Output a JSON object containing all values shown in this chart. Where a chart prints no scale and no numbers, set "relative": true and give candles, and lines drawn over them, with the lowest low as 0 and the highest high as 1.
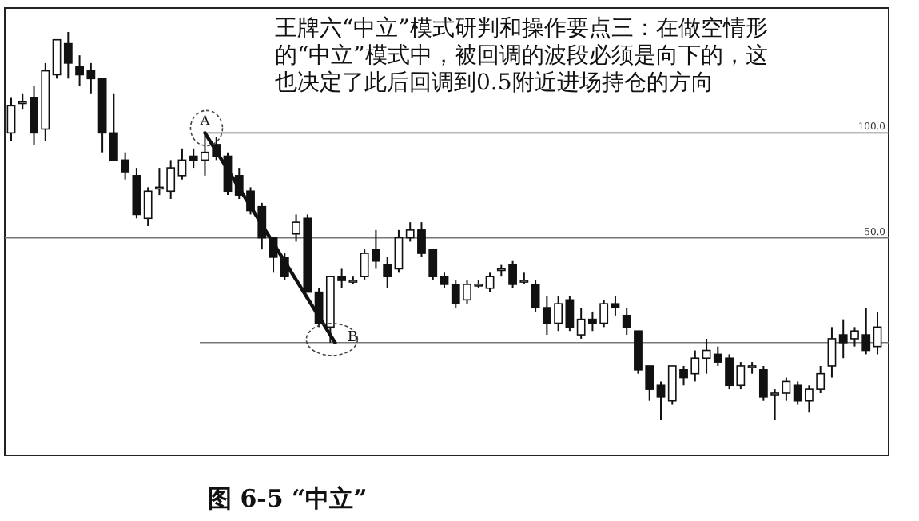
{
  "chart_data": {
    "type": "candlestick",
    "relative": true,
    "categories": [
      null,
      null,
      null,
      null,
      null,
      null,
      null,
      null,
      null,
      null,
      null,
      null,
      null,
      null,
      null,
      null,
      null,
      null,
      null,
      null,
      null,
      null,
      null,
      null,
      null,
      null,
      null,
      null,
      null,
      null,
      null,
      null,
      null,
      null,
      null,
      null,
      null,
      null,
      null,
      null,
      null,
      null,
      null,
      null,
      null,
      null,
      null,
      null,
      null,
      null,
      null,
      null,
      null,
      null,
      null,
      null,
      null,
      null,
      null,
      null,
      null,
      null,
      null,
      null,
      null,
      null,
      null,
      null,
      null,
      null,
      null,
      null,
      null,
      null,
      null,
      null,
      null
    ],
    "ohlc": [
      [
        0.74,
        0.83,
        0.72,
        0.81
      ],
      [
        0.82,
        0.84,
        0.8,
        0.82
      ],
      [
        0.83,
        0.86,
        0.71,
        0.74
      ],
      [
        0.75,
        0.92,
        0.72,
        0.9
      ],
      [
        0.89,
        0.98,
        0.88,
        0.98
      ],
      [
        0.97,
        1.0,
        0.88,
        0.92
      ],
      [
        0.91,
        0.94,
        0.86,
        0.89
      ],
      [
        0.9,
        0.92,
        0.84,
        0.88
      ],
      [
        0.88,
        0.88,
        0.69,
        0.74
      ],
      [
        0.74,
        0.84,
        0.67,
        0.67
      ],
      [
        0.67,
        0.69,
        0.62,
        0.64
      ],
      [
        0.63,
        0.65,
        0.52,
        0.53
      ],
      [
        0.52,
        0.6,
        0.5,
        0.59
      ],
      [
        0.6,
        0.65,
        0.58,
        0.6
      ],
      [
        0.59,
        0.67,
        0.57,
        0.65
      ],
      [
        0.63,
        0.7,
        0.62,
        0.67
      ],
      [
        0.68,
        0.7,
        0.65,
        0.67
      ],
      [
        0.67,
        0.74,
        0.63,
        0.69
      ],
      [
        0.71,
        0.73,
        0.67,
        0.68
      ],
      [
        0.68,
        0.69,
        0.58,
        0.59
      ],
      [
        0.63,
        0.65,
        0.57,
        0.58
      ],
      [
        0.59,
        0.6,
        0.53,
        0.54
      ],
      [
        0.55,
        0.56,
        0.44,
        0.47
      ],
      [
        0.47,
        0.47,
        0.38,
        0.42
      ],
      [
        0.42,
        0.43,
        0.36,
        0.37
      ],
      [
        0.48,
        0.53,
        0.46,
        0.51
      ],
      [
        0.52,
        0.53,
        0.33,
        0.33
      ],
      [
        0.33,
        0.34,
        0.24,
        0.25
      ],
      [
        0.24,
        0.37,
        0.2,
        0.37
      ],
      [
        0.37,
        0.39,
        0.34,
        0.36
      ],
      [
        0.36,
        0.37,
        0.35,
        0.36
      ],
      [
        0.37,
        0.44,
        0.36,
        0.43
      ],
      [
        0.44,
        0.49,
        0.39,
        0.41
      ],
      [
        0.4,
        0.42,
        0.34,
        0.37
      ],
      [
        0.39,
        0.49,
        0.38,
        0.47
      ],
      [
        0.47,
        0.51,
        0.46,
        0.49
      ],
      [
        0.49,
        0.51,
        0.42,
        0.43
      ],
      [
        0.44,
        0.44,
        0.36,
        0.37
      ],
      [
        0.37,
        0.38,
        0.34,
        0.35
      ],
      [
        0.35,
        0.36,
        0.29,
        0.3
      ],
      [
        0.31,
        0.36,
        0.3,
        0.35
      ],
      [
        0.35,
        0.36,
        0.34,
        0.35
      ],
      [
        0.34,
        0.38,
        0.33,
        0.37
      ],
      [
        0.39,
        0.4,
        0.37,
        0.39
      ],
      [
        0.4,
        0.41,
        0.34,
        0.35
      ],
      [
        0.36,
        0.38,
        0.35,
        0.36
      ],
      [
        0.35,
        0.36,
        0.28,
        0.29
      ],
      [
        0.29,
        0.32,
        0.22,
        0.25
      ],
      [
        0.25,
        0.32,
        0.23,
        0.3
      ],
      [
        0.31,
        0.32,
        0.23,
        0.24
      ],
      [
        0.22,
        0.29,
        0.21,
        0.26
      ],
      [
        0.26,
        0.28,
        0.23,
        0.25
      ],
      [
        0.25,
        0.31,
        0.24,
        0.3
      ],
      [
        0.3,
        0.32,
        0.27,
        0.29
      ],
      [
        0.27,
        0.29,
        0.22,
        0.24
      ],
      [
        0.23,
        0.23,
        0.12,
        0.13
      ],
      [
        0.14,
        0.14,
        0.05,
        0.08
      ],
      [
        0.09,
        0.1,
        0.0,
        0.06
      ],
      [
        0.05,
        0.14,
        0.04,
        0.14
      ],
      [
        0.13,
        0.14,
        0.09,
        0.11
      ],
      [
        0.12,
        0.18,
        0.1,
        0.16
      ],
      [
        0.16,
        0.21,
        0.12,
        0.18
      ],
      [
        0.17,
        0.19,
        0.14,
        0.15
      ],
      [
        0.16,
        0.17,
        0.08,
        0.09
      ],
      [
        0.09,
        0.15,
        0.08,
        0.14
      ],
      [
        0.14,
        0.15,
        0.12,
        0.14
      ],
      [
        0.13,
        0.14,
        0.05,
        0.06
      ],
      [
        0.07,
        0.08,
        0.0,
        0.07
      ],
      [
        0.07,
        0.11,
        0.05,
        0.1
      ],
      [
        0.09,
        0.1,
        0.04,
        0.05
      ],
      [
        0.05,
        0.09,
        0.02,
        0.08
      ],
      [
        0.08,
        0.14,
        0.07,
        0.12
      ],
      [
        0.14,
        0.24,
        0.11,
        0.21
      ],
      [
        0.22,
        0.26,
        0.16,
        0.2
      ],
      [
        0.21,
        0.24,
        0.19,
        0.23
      ],
      [
        0.22,
        0.29,
        0.17,
        0.18
      ],
      [
        0.19,
        0.28,
        0.17,
        0.24
      ]
    ],
    "ref_lines": [
      {
        "axis": "y",
        "value": 0.74
      },
      {
        "axis": "y",
        "value": 0.47
      },
      {
        "axis": "y",
        "value": 0.2
      }
    ],
    "annotations": [
      "王牌六“中立”模式研判和操作要点三：在做空情形的“中立”模式中，被回调的波段必须是向下的，这也决定了此后回调到0.5附近进场持仓的方向",
      "A",
      "B",
      "图 6-5 “中立”",
      "100.0",
      "50.0"
    ]
  }
}
